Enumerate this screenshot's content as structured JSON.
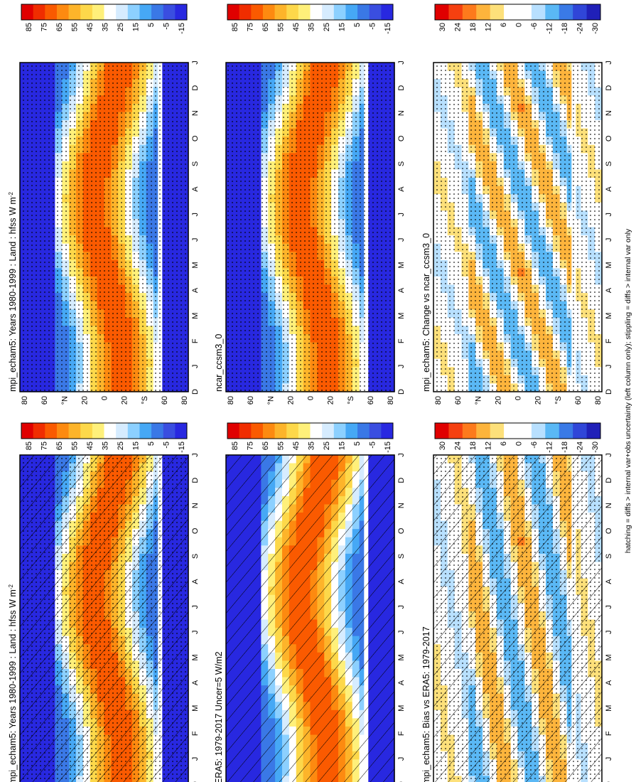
{
  "footer_note": "hatching = diffs > internal var+obs uncertainty (left column only); stippling = diffs > internal var only",
  "month_labels": [
    "D",
    "J",
    "F",
    "M",
    "A",
    "M",
    "J",
    "J",
    "A",
    "S",
    "O",
    "N",
    "D",
    "J"
  ],
  "lat_labels": [
    "80",
    "60",
    "°N",
    "20",
    "0",
    "20",
    "°S",
    "60",
    "80"
  ],
  "colors": {
    "abs_scale": [
      "#e00000",
      "#f02d00",
      "#fa5a00",
      "#fd8a10",
      "#fdb42a",
      "#fdd84a",
      "#fff07a",
      "#ffffff",
      "#d6ecff",
      "#8cd0ff",
      "#46a8f5",
      "#3a78e6",
      "#3a4ee0",
      "#2828e0"
    ],
    "diff_scale": [
      "#e00000",
      "#f54010",
      "#fd7a1c",
      "#fdb43c",
      "#fde07a",
      "#ffffff",
      "#ffffff",
      "#b8e0ff",
      "#5ab8f5",
      "#3a7ae6",
      "#3046d8",
      "#2020b8"
    ]
  },
  "chart_data": [
    {
      "type": "heatmap",
      "title": "mpi_echam5: Years 1980-1999 : Land : hfss W m",
      "title_sup": "-2",
      "colorbar_ticks": [
        "85",
        "75",
        "65",
        "55",
        "45",
        "35",
        "25",
        "15",
        "5",
        "-5",
        "-15"
      ],
      "scale": "abs",
      "hatching": true,
      "stippling": true
    },
    {
      "type": "heatmap",
      "title": "mpi_echam5: Years 1980-1999 : Land : hfss W m",
      "title_sup": "-2",
      "colorbar_ticks": [
        "85",
        "75",
        "65",
        "55",
        "45",
        "35",
        "25",
        "15",
        "5",
        "-5",
        "-15"
      ],
      "scale": "abs",
      "hatching": false,
      "stippling": true
    },
    {
      "type": "heatmap",
      "title": "ERA5: 1979-2017 Uncer=5 W/m2",
      "title_sup": "",
      "colorbar_ticks": [
        "85",
        "75",
        "65",
        "55",
        "45",
        "35",
        "25",
        "15",
        "5",
        "-5",
        "-15"
      ],
      "scale": "abs",
      "hatching": true,
      "stippling": false
    },
    {
      "type": "heatmap",
      "title": "ncar_ccsm3_0",
      "title_sup": "",
      "colorbar_ticks": [
        "85",
        "75",
        "65",
        "55",
        "45",
        "35",
        "25",
        "15",
        "5",
        "-5",
        "-15"
      ],
      "scale": "abs",
      "hatching": false,
      "stippling": true
    },
    {
      "type": "heatmap",
      "title": "mpi_echam5: Bias vs ERA5: 1979-2017",
      "title_sup": "",
      "colorbar_ticks": [
        "30",
        "24",
        "18",
        "12",
        "6",
        "0",
        "-6",
        "-12",
        "-18",
        "-24",
        "-30"
      ],
      "scale": "diff",
      "hatching": true,
      "stippling": true
    },
    {
      "type": "heatmap",
      "title": "mpi_echam5: Change vs ncar_ccsm3_0",
      "title_sup": "",
      "colorbar_ticks": [
        "30",
        "24",
        "18",
        "12",
        "6",
        "0",
        "-6",
        "-12",
        "-18",
        "-24",
        "-30"
      ],
      "scale": "diff",
      "hatching": false,
      "stippling": true
    }
  ]
}
